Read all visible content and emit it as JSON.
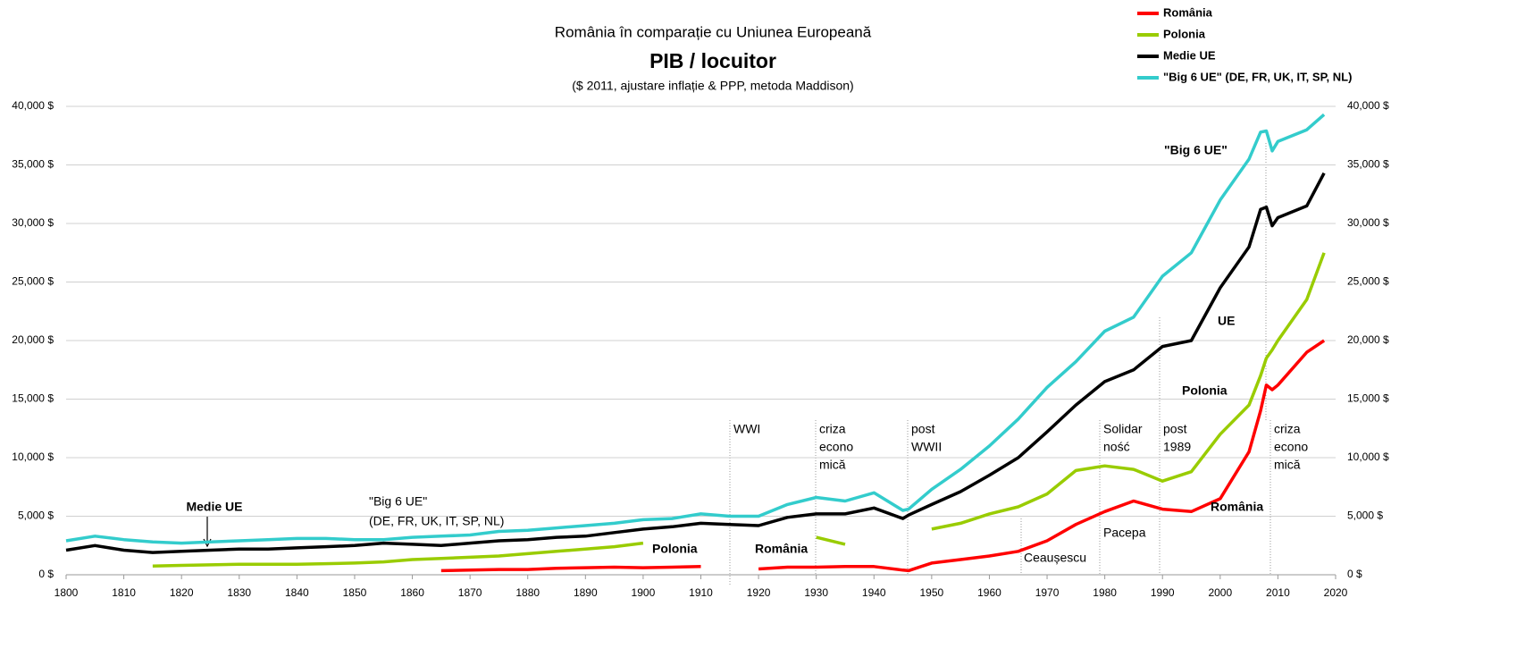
{
  "chart_data": {
    "type": "line",
    "title": "România în comparație cu Uniunea Europeană",
    "subtitle_main": "PIB / locuitor",
    "subtitle": "($ 2011, ajustare inflație & PPP, metoda Maddison)",
    "legend": "top right",
    "grid": true,
    "xlim": [
      1800,
      2020
    ],
    "xticks": [
      1800,
      1810,
      1820,
      1830,
      1840,
      1850,
      1860,
      1870,
      1880,
      1890,
      1900,
      1910,
      1920,
      1930,
      1940,
      1950,
      1960,
      1970,
      1980,
      1990,
      2000,
      2010,
      2020
    ],
    "ylim": [
      0,
      40000
    ],
    "yticks": [
      {
        "value": 0,
        "label": "0 $"
      },
      {
        "value": 5000,
        "label": "5,000 $"
      },
      {
        "value": 10000,
        "label": "10,000 $"
      },
      {
        "value": 15000,
        "label": "15,000 $"
      },
      {
        "value": 20000,
        "label": "20,000 $"
      },
      {
        "value": 25000,
        "label": "25,000 $"
      },
      {
        "value": 30000,
        "label": "30,000 $"
      },
      {
        "value": 35000,
        "label": "35,000 $"
      },
      {
        "value": 40000,
        "label": "40,000 $"
      }
    ],
    "x": [
      1800,
      1805,
      1810,
      1815,
      1820,
      1825,
      1830,
      1835,
      1840,
      1845,
      1850,
      1855,
      1860,
      1865,
      1870,
      1875,
      1880,
      1885,
      1890,
      1895,
      1900,
      1905,
      1910,
      1915,
      1920,
      1925,
      1930,
      1935,
      1940,
      1945,
      1946,
      1950,
      1955,
      1960,
      1965,
      1970,
      1975,
      1980,
      1985,
      1990,
      1995,
      2000,
      2005,
      2007,
      2008,
      2009,
      2010,
      2015,
      2018
    ],
    "series": [
      {
        "name": "România",
        "color": "#ff0000",
        "values": [
          null,
          null,
          null,
          null,
          null,
          null,
          null,
          null,
          null,
          null,
          null,
          null,
          null,
          350,
          400,
          450,
          450,
          550,
          600,
          650,
          600,
          650,
          700,
          null,
          500,
          650,
          650,
          700,
          700,
          400,
          350,
          1000,
          1300,
          1600,
          2000,
          2900,
          4300,
          5400,
          6300,
          5600,
          5400,
          6500,
          10500,
          14000,
          16200,
          15800,
          16200,
          19000,
          20000
        ]
      },
      {
        "name": "Polonia",
        "color": "#99cc00",
        "values": [
          null,
          null,
          null,
          750,
          800,
          850,
          900,
          900,
          900,
          950,
          1000,
          1100,
          1300,
          1400,
          1500,
          1600,
          1800,
          2000,
          2200,
          2400,
          2700,
          null,
          null,
          null,
          null,
          null,
          3200,
          2600,
          null,
          null,
          null,
          3900,
          4400,
          5200,
          5800,
          6900,
          8900,
          9300,
          9000,
          8000,
          8800,
          12000,
          14500,
          17000,
          18500,
          19200,
          20000,
          23500,
          27500
        ]
      },
      {
        "name": "Medie UE",
        "color": "#000000",
        "values": [
          2100,
          2500,
          2100,
          1900,
          2000,
          2100,
          2200,
          2200,
          2300,
          2400,
          2500,
          2700,
          2600,
          2500,
          2700,
          2900,
          3000,
          3200,
          3300,
          3600,
          3900,
          4100,
          4400,
          4300,
          4200,
          4900,
          5200,
          5200,
          5700,
          4800,
          5100,
          6000,
          7100,
          8500,
          10000,
          12200,
          14500,
          16500,
          17500,
          19500,
          20000,
          24500,
          28000,
          31200,
          31400,
          29800,
          30500,
          31500,
          34300
        ]
      },
      {
        "name": "\"Big 6 UE\" (DE, FR, UK, IT, SP, NL)",
        "color": "#33cccc",
        "values": [
          2900,
          3300,
          3000,
          2800,
          2700,
          2800,
          2900,
          3000,
          3100,
          3100,
          3000,
          3000,
          3200,
          3300,
          3400,
          3700,
          3800,
          4000,
          4200,
          4400,
          4700,
          4800,
          5200,
          5000,
          5000,
          6000,
          6600,
          6300,
          7000,
          5500,
          5600,
          7300,
          9000,
          11000,
          13300,
          16000,
          18200,
          20800,
          22000,
          25500,
          27500,
          32000,
          35500,
          37800,
          37900,
          36200,
          37000,
          38000,
          39300
        ]
      }
    ],
    "annotations": [
      "Medie UE",
      "\"Big 6 UE\"",
      "(DE, FR, UK, IT, SP, NL)",
      "Polonia",
      "România",
      "WWI",
      "criza",
      "econo",
      "mică",
      "post",
      "WWII",
      "Ceaușescu",
      "Solidar",
      "ność",
      "Pacepa",
      "post",
      "1989",
      "criza",
      "econo",
      "mică",
      "\"Big 6 UE\"",
      "UE",
      "Polonia",
      "România"
    ]
  }
}
